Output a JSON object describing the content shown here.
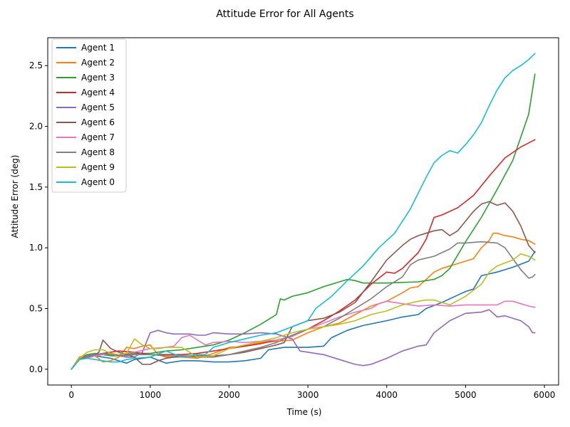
{
  "chart_data": {
    "type": "line",
    "title": "Attitude Error for All Agents",
    "xlabel": "Time (s)",
    "ylabel": "Attitude Error (deg)",
    "xlim": [
      -300,
      6180
    ],
    "ylim": [
      -0.13,
      2.73
    ],
    "xticks": [
      0,
      1000,
      2000,
      3000,
      4000,
      5000,
      6000
    ],
    "yticks": [
      0.0,
      0.5,
      1.0,
      1.5,
      2.0,
      2.5
    ],
    "xtick_labels": [
      "0",
      "1000",
      "2000",
      "3000",
      "4000",
      "5000",
      "6000"
    ],
    "ytick_labels": [
      "0.0",
      "0.5",
      "1.0",
      "1.5",
      "2.0",
      "2.5"
    ],
    "grid": false,
    "legend": "top-left",
    "series": [
      {
        "name": "Agent 1",
        "color": "#1f77b4",
        "x": [
          0,
          100,
          200,
          300,
          400,
          500,
          600,
          700,
          800,
          1000,
          1200,
          1400,
          1600,
          1800,
          2000,
          2200,
          2400,
          2500,
          2700,
          3000,
          3200,
          3300,
          3500,
          3700,
          4000,
          4200,
          4400,
          4500,
          4700,
          4900,
          5000,
          5100,
          5200,
          5400,
          5600,
          5800,
          5880
        ],
        "y": [
          0.0,
          0.08,
          0.1,
          0.11,
          0.1,
          0.09,
          0.07,
          0.05,
          0.08,
          0.1,
          0.05,
          0.07,
          0.07,
          0.06,
          0.06,
          0.07,
          0.09,
          0.16,
          0.18,
          0.18,
          0.19,
          0.26,
          0.32,
          0.36,
          0.4,
          0.43,
          0.45,
          0.5,
          0.55,
          0.61,
          0.64,
          0.66,
          0.77,
          0.8,
          0.84,
          0.89,
          0.97
        ]
      },
      {
        "name": "Agent 2",
        "color": "#ff7f0e",
        "x": [
          0,
          100,
          200,
          300,
          400,
          500,
          600,
          700,
          800,
          900,
          1000,
          1100,
          1200,
          1400,
          1600,
          1800,
          2000,
          2200,
          2400,
          2600,
          2800,
          3000,
          3200,
          3400,
          3600,
          3800,
          4000,
          4200,
          4300,
          4400,
          4500,
          4600,
          4700,
          4900,
          5100,
          5200,
          5300,
          5350,
          5400,
          5500,
          5600,
          5700,
          5800,
          5880
        ],
        "y": [
          0.0,
          0.1,
          0.12,
          0.11,
          0.06,
          0.07,
          0.1,
          0.18,
          0.17,
          0.19,
          0.2,
          0.12,
          0.1,
          0.1,
          0.09,
          0.13,
          0.18,
          0.19,
          0.22,
          0.23,
          0.24,
          0.3,
          0.35,
          0.38,
          0.45,
          0.52,
          0.56,
          0.63,
          0.67,
          0.68,
          0.74,
          0.8,
          0.83,
          0.87,
          0.91,
          1.0,
          1.06,
          1.12,
          1.12,
          1.1,
          1.09,
          1.07,
          1.06,
          1.03
        ]
      },
      {
        "name": "Agent 3",
        "color": "#2ca02c",
        "x": [
          0,
          100,
          200,
          300,
          400,
          500,
          600,
          800,
          1000,
          1200,
          1400,
          1600,
          1800,
          2000,
          2200,
          2400,
          2600,
          2650,
          2700,
          2800,
          3000,
          3200,
          3400,
          3500,
          3600,
          3700,
          4000,
          4400,
          4600,
          4700,
          4800,
          5000,
          5200,
          5400,
          5600,
          5800,
          5880
        ],
        "y": [
          0.0,
          0.08,
          0.12,
          0.13,
          0.12,
          0.11,
          0.11,
          0.13,
          0.13,
          0.15,
          0.16,
          0.18,
          0.2,
          0.24,
          0.3,
          0.37,
          0.45,
          0.58,
          0.57,
          0.6,
          0.63,
          0.68,
          0.72,
          0.74,
          0.73,
          0.71,
          0.71,
          0.72,
          0.74,
          0.77,
          0.83,
          1.05,
          1.25,
          1.48,
          1.72,
          2.1,
          2.43
        ]
      },
      {
        "name": "Agent 4",
        "color": "#d62728",
        "x": [
          0,
          100,
          200,
          400,
          600,
          800,
          1000,
          1200,
          1400,
          1600,
          1800,
          2000,
          2200,
          2400,
          2600,
          2800,
          3000,
          3200,
          3400,
          3600,
          3800,
          4000,
          4100,
          4200,
          4400,
          4500,
          4600,
          4700,
          4900,
          5100,
          5300,
          5500,
          5700,
          5880
        ],
        "y": [
          0.0,
          0.08,
          0.1,
          0.13,
          0.15,
          0.14,
          0.12,
          0.12,
          0.12,
          0.13,
          0.15,
          0.17,
          0.19,
          0.21,
          0.24,
          0.27,
          0.33,
          0.4,
          0.48,
          0.57,
          0.7,
          0.8,
          0.79,
          0.83,
          0.96,
          1.07,
          1.25,
          1.27,
          1.33,
          1.43,
          1.59,
          1.74,
          1.83,
          1.89
        ]
      },
      {
        "name": "Agent 5",
        "color": "#9467bd",
        "x": [
          0,
          100,
          200,
          300,
          400,
          500,
          600,
          700,
          800,
          900,
          1000,
          1100,
          1200,
          1300,
          1400,
          1500,
          1600,
          1700,
          1800,
          2000,
          2200,
          2400,
          2600,
          2800,
          2900,
          3000,
          3200,
          3400,
          3600,
          3700,
          3800,
          4000,
          4200,
          4400,
          4500,
          4600,
          4800,
          5000,
          5200,
          5300,
          5400,
          5500,
          5600,
          5700,
          5800,
          5850,
          5880
        ],
        "y": [
          0.0,
          0.08,
          0.11,
          0.12,
          0.13,
          0.12,
          0.11,
          0.1,
          0.1,
          0.14,
          0.3,
          0.32,
          0.3,
          0.29,
          0.29,
          0.29,
          0.28,
          0.28,
          0.3,
          0.29,
          0.29,
          0.3,
          0.29,
          0.25,
          0.15,
          0.14,
          0.12,
          0.08,
          0.04,
          0.03,
          0.04,
          0.09,
          0.15,
          0.19,
          0.2,
          0.3,
          0.4,
          0.46,
          0.47,
          0.49,
          0.43,
          0.44,
          0.42,
          0.4,
          0.35,
          0.3,
          0.3
        ]
      },
      {
        "name": "Agent 6",
        "color": "#8c564b",
        "x": [
          0,
          100,
          200,
          300,
          350,
          400,
          500,
          600,
          700,
          800,
          900,
          1000,
          1100,
          1200,
          1300,
          1400,
          1600,
          1800,
          2000,
          2200,
          2400,
          2600,
          2700,
          2800,
          3000,
          3200,
          3400,
          3600,
          3800,
          4000,
          4200,
          4300,
          4400,
          4500,
          4600,
          4700,
          4800,
          4900,
          5000,
          5100,
          5200,
          5300,
          5400,
          5500,
          5600,
          5700,
          5800,
          5880
        ],
        "y": [
          0.0,
          0.08,
          0.1,
          0.12,
          0.14,
          0.24,
          0.17,
          0.14,
          0.12,
          0.1,
          0.04,
          0.04,
          0.07,
          0.09,
          0.1,
          0.11,
          0.11,
          0.11,
          0.12,
          0.14,
          0.17,
          0.2,
          0.22,
          0.35,
          0.4,
          0.42,
          0.47,
          0.55,
          0.72,
          0.9,
          1.02,
          1.07,
          1.1,
          1.12,
          1.14,
          1.15,
          1.1,
          1.14,
          1.22,
          1.3,
          1.36,
          1.38,
          1.35,
          1.37,
          1.3,
          1.18,
          1.02,
          0.96
        ]
      },
      {
        "name": "Agent 7",
        "color": "#e377c2",
        "x": [
          0,
          100,
          200,
          300,
          400,
          500,
          600,
          800,
          1000,
          1200,
          1300,
          1400,
          1500,
          1600,
          1700,
          1800,
          2000,
          2200,
          2400,
          2600,
          2800,
          3000,
          3200,
          3400,
          3600,
          3800,
          3900,
          4000,
          4200,
          4400,
          4600,
          4800,
          5000,
          5200,
          5400,
          5500,
          5600,
          5700,
          5800,
          5880
        ],
        "y": [
          0.0,
          0.08,
          0.09,
          0.11,
          0.12,
          0.13,
          0.12,
          0.14,
          0.17,
          0.18,
          0.19,
          0.26,
          0.28,
          0.24,
          0.2,
          0.22,
          0.23,
          0.22,
          0.23,
          0.24,
          0.27,
          0.33,
          0.38,
          0.43,
          0.47,
          0.5,
          0.54,
          0.56,
          0.54,
          0.52,
          0.53,
          0.52,
          0.53,
          0.53,
          0.53,
          0.56,
          0.56,
          0.54,
          0.52,
          0.51
        ]
      },
      {
        "name": "Agent 8",
        "color": "#7f7f7f",
        "x": [
          0,
          100,
          200,
          300,
          400,
          500,
          600,
          700,
          800,
          1000,
          1200,
          1400,
          1600,
          1800,
          2000,
          2200,
          2400,
          2600,
          2800,
          3000,
          3200,
          3400,
          3600,
          3800,
          4000,
          4200,
          4300,
          4400,
          4600,
          4800,
          4900,
          5000,
          5200,
          5400,
          5500,
          5600,
          5700,
          5800,
          5850,
          5880
        ],
        "y": [
          0.0,
          0.08,
          0.1,
          0.12,
          0.13,
          0.12,
          0.12,
          0.11,
          0.12,
          0.12,
          0.11,
          0.11,
          0.1,
          0.1,
          0.12,
          0.15,
          0.18,
          0.22,
          0.28,
          0.33,
          0.35,
          0.42,
          0.5,
          0.58,
          0.68,
          0.76,
          0.86,
          0.9,
          0.93,
          0.99,
          1.04,
          1.04,
          1.05,
          1.04,
          1.0,
          0.91,
          0.82,
          0.75,
          0.76,
          0.78
        ]
      },
      {
        "name": "Agent 9",
        "color": "#bcbd22",
        "x": [
          0,
          100,
          200,
          300,
          400,
          500,
          600,
          700,
          800,
          900,
          1000,
          1100,
          1200,
          1400,
          1600,
          1800,
          2000,
          2200,
          2400,
          2600,
          2800,
          3000,
          3200,
          3400,
          3600,
          3800,
          4000,
          4200,
          4400,
          4500,
          4600,
          4700,
          4800,
          5000,
          5200,
          5300,
          5400,
          5600,
          5700,
          5800,
          5880
        ],
        "y": [
          0.0,
          0.09,
          0.14,
          0.16,
          0.16,
          0.13,
          0.12,
          0.13,
          0.25,
          0.2,
          0.17,
          0.17,
          0.18,
          0.18,
          0.1,
          0.11,
          0.17,
          0.2,
          0.23,
          0.26,
          0.3,
          0.33,
          0.35,
          0.37,
          0.4,
          0.45,
          0.48,
          0.53,
          0.56,
          0.57,
          0.57,
          0.55,
          0.53,
          0.6,
          0.7,
          0.8,
          0.85,
          0.9,
          0.95,
          0.93,
          0.9
        ]
      },
      {
        "name": "Agent 0",
        "color": "#17becf",
        "x": [
          0,
          100,
          200,
          300,
          400,
          500,
          600,
          700,
          800,
          1000,
          1200,
          1400,
          1600,
          1700,
          1800,
          2000,
          2200,
          2400,
          2600,
          2800,
          3000,
          3100,
          3300,
          3500,
          3700,
          3900,
          4100,
          4200,
          4300,
          4400,
          4500,
          4600,
          4700,
          4800,
          4900,
          5000,
          5100,
          5200,
          5300,
          5400,
          5500,
          5600,
          5700,
          5800,
          5880
        ],
        "y": [
          0.0,
          0.08,
          0.09,
          0.08,
          0.07,
          0.06,
          0.06,
          0.08,
          0.09,
          0.1,
          0.15,
          0.1,
          0.12,
          0.12,
          0.18,
          0.22,
          0.25,
          0.28,
          0.3,
          0.35,
          0.4,
          0.5,
          0.6,
          0.73,
          0.85,
          1.0,
          1.12,
          1.22,
          1.32,
          1.45,
          1.58,
          1.7,
          1.76,
          1.8,
          1.78,
          1.85,
          1.93,
          2.03,
          2.17,
          2.3,
          2.4,
          2.46,
          2.5,
          2.55,
          2.6
        ]
      }
    ]
  }
}
